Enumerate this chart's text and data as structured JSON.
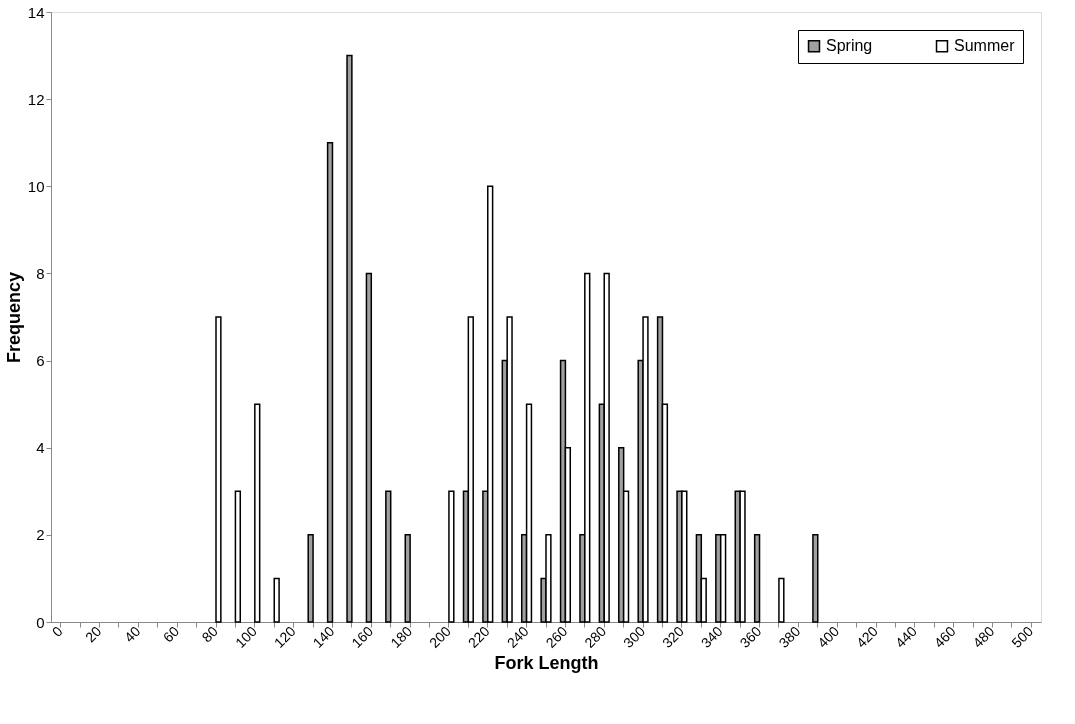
{
  "chart_data": {
    "type": "bar",
    "xlabel": "Fork Length",
    "ylabel": "Frequency",
    "categories": [
      "0",
      null,
      "20",
      null,
      "40",
      null,
      "60",
      null,
      "80",
      null,
      "100",
      null,
      "120",
      null,
      "140",
      null,
      "160",
      null,
      "180",
      null,
      "200",
      null,
      "220",
      null,
      "240",
      null,
      "260",
      null,
      "280",
      null,
      "300",
      null,
      "320",
      null,
      "340",
      null,
      "360",
      null,
      "380",
      null,
      "400",
      null,
      "420",
      null,
      "440",
      null,
      "460",
      null,
      "480",
      null,
      "500"
    ],
    "series": [
      {
        "name": "Spring",
        "color": "#a0a0a0",
        "values": [
          0,
          0,
          0,
          0,
          0,
          0,
          0,
          0,
          0,
          0,
          0,
          0,
          0,
          2,
          11,
          13,
          8,
          3,
          2,
          0,
          0,
          3,
          3,
          6,
          2,
          1,
          6,
          2,
          5,
          4,
          6,
          7,
          3,
          2,
          2,
          3,
          2,
          0,
          0,
          2,
          0,
          0,
          0,
          0,
          0,
          0,
          0,
          0,
          0,
          0,
          0
        ]
      },
      {
        "name": "Summer",
        "color": "#ffffff",
        "values": [
          0,
          0,
          0,
          0,
          0,
          0,
          0,
          0,
          7,
          3,
          5,
          1,
          0,
          0,
          0,
          0,
          0,
          0,
          0,
          0,
          3,
          7,
          10,
          7,
          5,
          2,
          4,
          8,
          8,
          3,
          7,
          5,
          3,
          1,
          2,
          3,
          0,
          1,
          0,
          0,
          0,
          0,
          0,
          0,
          0,
          0,
          0,
          0,
          0,
          0,
          0
        ]
      }
    ],
    "ylim": [
      0,
      14
    ],
    "yticks": [
      0,
      2,
      4,
      6,
      8,
      10,
      12,
      14
    ],
    "grid": false,
    "legend": "top right"
  }
}
